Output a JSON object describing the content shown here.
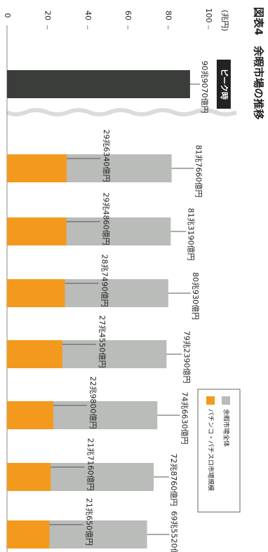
{
  "chart_data": {
    "type": "bar",
    "title": "図表4　余暇市場の推移",
    "y_label": "(兆円)",
    "annotation": "ピーク時",
    "ylim": [
      0,
      100
    ],
    "yticks": [
      0,
      20,
      40,
      60,
      80,
      100
    ],
    "grid": false,
    "legend": "upper right",
    "series": [
      {
        "name": "余暇市場全体",
        "color": "#b9bcb9",
        "peak_color": "#3a3d3a",
        "values": [
          90.907,
          81.766,
          81.319,
          80.093,
          79.239,
          74.663,
          72.876,
          69.552
        ],
        "value_labels": [
          "90兆9070億円",
          "81兆7660億円",
          "81兆3190億円",
          "80兆930億円",
          "79兆2390億円",
          "74兆6630億円",
          "72兆8760億円",
          "69兆5520億円"
        ]
      },
      {
        "name": "パチンコ・パチスロ市場規模",
        "color": "#f39a1e",
        "values": [
          null,
          29.634,
          29.486,
          28.749,
          27.455,
          22.98,
          21.716,
          21.065
        ],
        "value_labels": [
          null,
          "29兆6340億円",
          "29兆4860億円",
          "28兆7490億円",
          "27兆4550億円",
          "22兆9800億円",
          "21兆7160億円",
          "21兆650億円"
        ]
      }
    ]
  }
}
